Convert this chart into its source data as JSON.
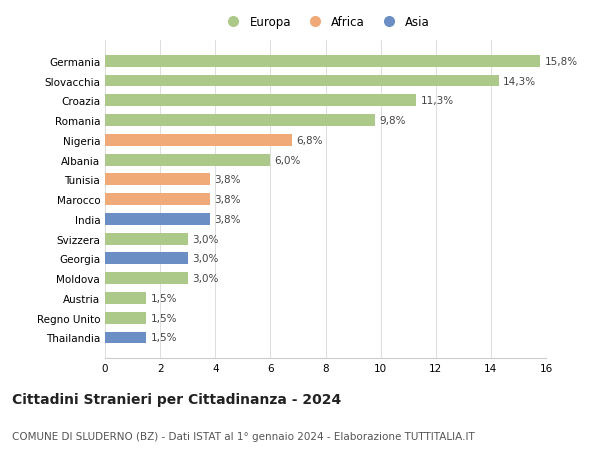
{
  "categories": [
    "Germania",
    "Slovacchia",
    "Croazia",
    "Romania",
    "Nigeria",
    "Albania",
    "Tunisia",
    "Marocco",
    "India",
    "Svizzera",
    "Georgia",
    "Moldova",
    "Austria",
    "Regno Unito",
    "Thailandia"
  ],
  "values": [
    15.8,
    14.3,
    11.3,
    9.8,
    6.8,
    6.0,
    3.8,
    3.8,
    3.8,
    3.0,
    3.0,
    3.0,
    1.5,
    1.5,
    1.5
  ],
  "continents": [
    "Europa",
    "Europa",
    "Europa",
    "Europa",
    "Africa",
    "Europa",
    "Africa",
    "Africa",
    "Asia",
    "Europa",
    "Asia",
    "Europa",
    "Europa",
    "Europa",
    "Asia"
  ],
  "colors": {
    "Europa": "#adc98a",
    "Africa": "#f0aa78",
    "Asia": "#6b8fc4"
  },
  "legend_order": [
    "Europa",
    "Africa",
    "Asia"
  ],
  "xlim": [
    0,
    16
  ],
  "xticks": [
    0,
    2,
    4,
    6,
    8,
    10,
    12,
    14,
    16
  ],
  "title": "Cittadini Stranieri per Cittadinanza - 2024",
  "subtitle": "COMUNE DI SLUDERNO (BZ) - Dati ISTAT al 1° gennaio 2024 - Elaborazione TUTTITALIA.IT",
  "title_fontsize": 10,
  "subtitle_fontsize": 7.5,
  "label_fontsize": 7.5,
  "tick_fontsize": 7.5,
  "legend_fontsize": 8.5,
  "bar_height": 0.6,
  "background_color": "#ffffff",
  "grid_color": "#dddddd",
  "value_label_color": "#444444"
}
